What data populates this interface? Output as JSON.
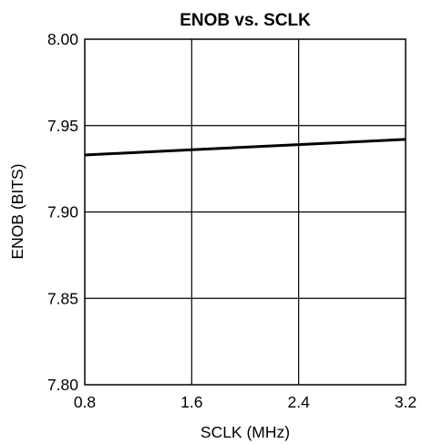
{
  "chart_data": {
    "type": "line",
    "title": "ENOB vs. SCLK",
    "xlabel": "SCLK (MHz)",
    "ylabel": "ENOB (BITS)",
    "xlim": [
      0.8,
      3.2
    ],
    "ylim": [
      7.8,
      8.0
    ],
    "xticks": [
      "0.8",
      "1.6",
      "2.4",
      "3.2"
    ],
    "yticks": [
      "7.80",
      "7.85",
      "7.90",
      "7.95",
      "8.00"
    ],
    "grid": true,
    "series": [
      {
        "color": "#000000",
        "x": [
          0.8,
          1.6,
          2.4,
          3.2
        ],
        "y": [
          7.933,
          7.936,
          7.939,
          7.942
        ]
      }
    ]
  }
}
